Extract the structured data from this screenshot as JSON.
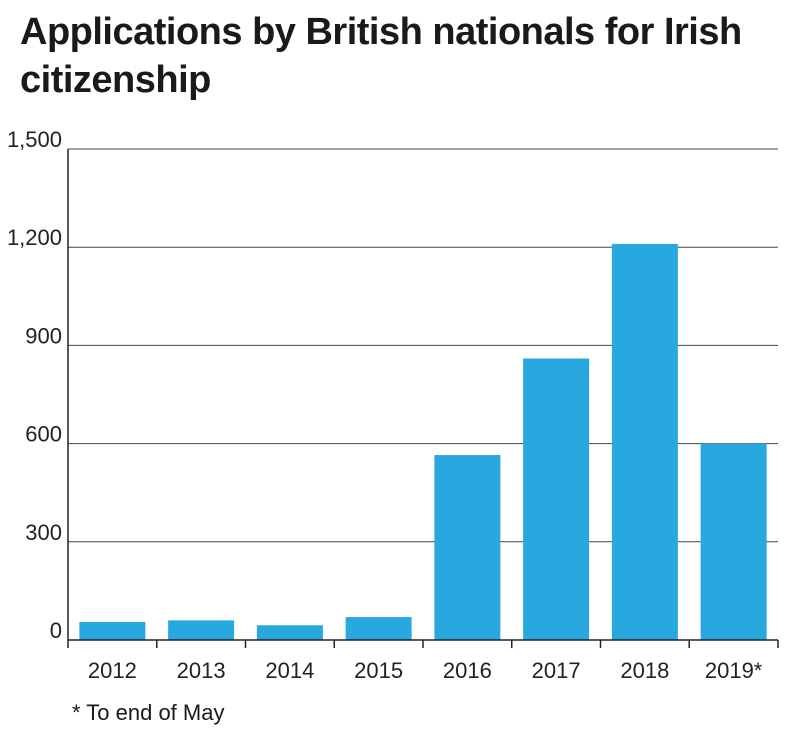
{
  "chart_data": {
    "type": "bar",
    "title": "Applications by British nationals for Irish citizenship",
    "xlabel": "",
    "ylabel": "",
    "categories": [
      "2012",
      "2013",
      "2014",
      "2015",
      "2016",
      "2017",
      "2018",
      "2019*"
    ],
    "values": [
      55,
      60,
      45,
      70,
      565,
      860,
      1210,
      600
    ],
    "ylim": [
      0,
      1500
    ],
    "yticks": [
      0,
      300,
      600,
      900,
      1200,
      1500
    ],
    "ytick_labels": [
      "0",
      "300",
      "600",
      "900",
      "1,200",
      "1,500"
    ],
    "grid": true,
    "bar_color": "#29a8e0",
    "footnote": "* To end of May"
  }
}
